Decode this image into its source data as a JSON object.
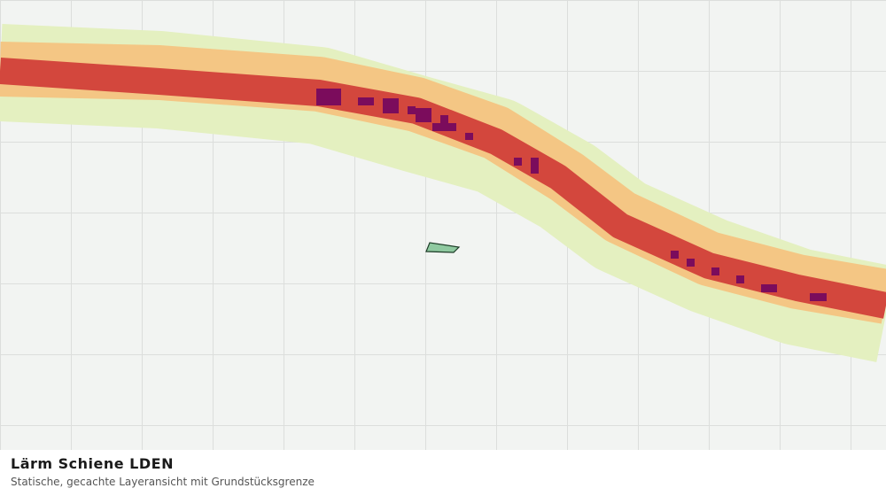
{
  "header": {
    "title": "Lärm Schiene LDEN",
    "subtitle": "Statische, gecachte Layeransicht mit Grundstücksgrenze"
  }
}
